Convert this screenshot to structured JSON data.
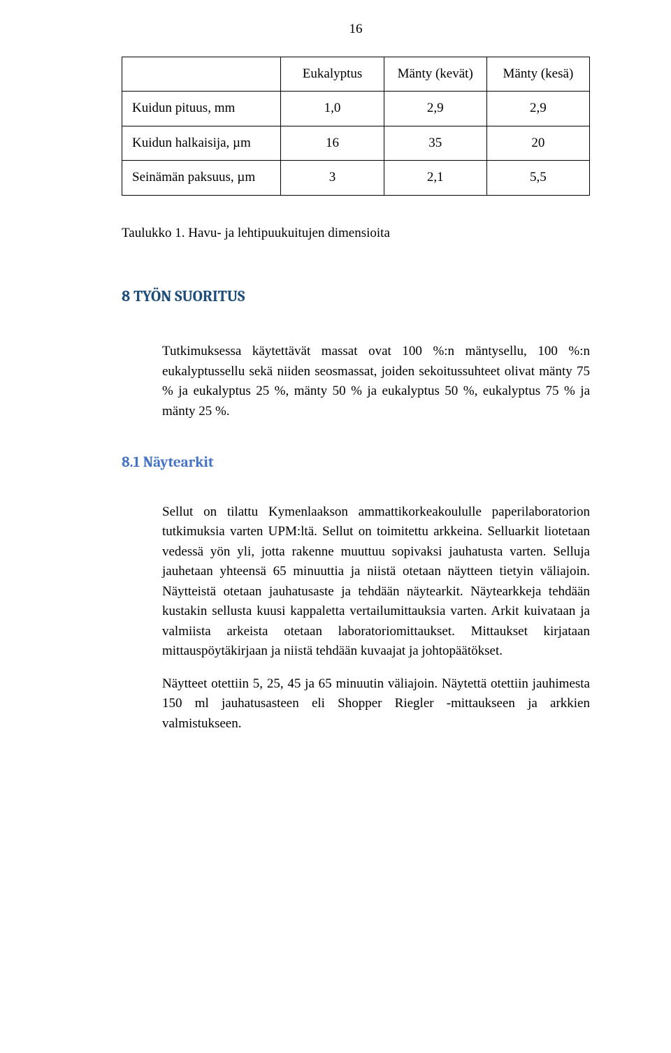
{
  "page": {
    "number": "16"
  },
  "table": {
    "headers": [
      "",
      "Eukalyptus",
      "Mänty (kevät)",
      "Mänty (kesä)"
    ],
    "rows": [
      {
        "label": "Kuidun pituus, mm",
        "c1": "1,0",
        "c2": "2,9",
        "c3": "2,9"
      },
      {
        "label": "Kuidun halkaisija, µm",
        "c1": "16",
        "c2": "35",
        "c3": "20"
      },
      {
        "label": "Seinämän paksuus, µm",
        "c1": "3",
        "c2": "2,1",
        "c3": "5,5"
      }
    ]
  },
  "caption": "Taulukko 1. Havu- ja lehtipuukuitujen dimensioita",
  "heading1": "8 TYÖN SUORITUS",
  "intro": "Tutkimuksessa käytettävät massat ovat 100 %:n mäntysellu, 100 %:n eukalyptussellu sekä niiden seosmassat, joiden sekoitussuhteet olivat mänty 75 % ja eukalyptus 25 %, mänty 50 % ja eukalyptus 50 %, eukalyptus 75 % ja mänty 25 %.",
  "heading2": "8.1 Näytearkit",
  "body1": "Sellut on tilattu Kymenlaakson ammattikorkeakoululle paperilaboratorion tutkimuksia varten UPM:ltä. Sellut on toimitettu arkkeina. Selluarkit liotetaan vedessä yön yli, jotta rakenne muuttuu sopivaksi jauhatusta varten. Selluja jauhetaan yhteensä 65 minuuttia ja niistä otetaan näytteen tietyin väliajoin. Näytteistä otetaan jauhatusaste ja tehdään näytearkit. Näytearkkeja tehdään kustakin sellusta kuusi kappaletta vertailumittauksia varten.  Arkit kuivataan ja valmiista arkeista otetaan laboratoriomittaukset. Mittaukset kirjataan mittauspöytäkirjaan ja niistä tehdään kuvaajat ja johtopäätökset.",
  "body2": "Näytteet otettiin 5, 25, 45 ja 65 minuutin väliajoin. Näytettä otettiin jauhimesta 150 ml jauhatusasteen eli Shopper Riegler -mittaukseen ja arkkien valmistukseen."
}
